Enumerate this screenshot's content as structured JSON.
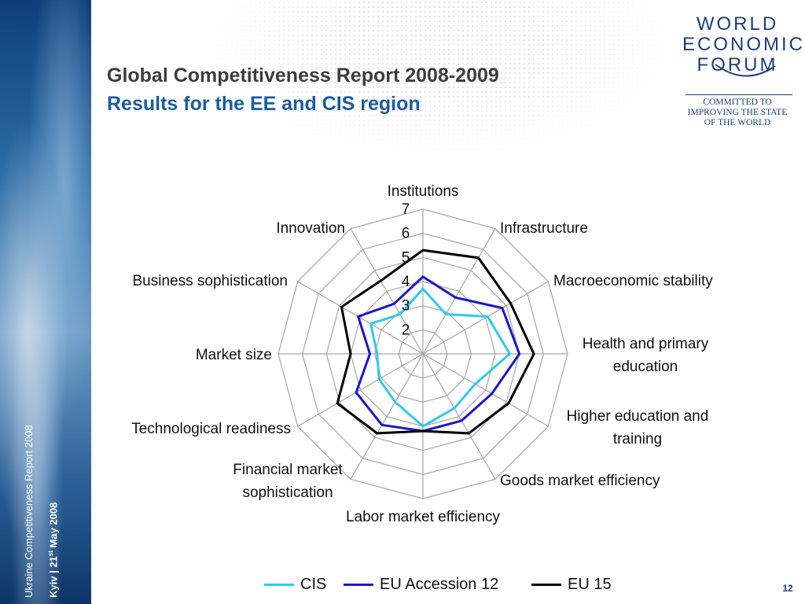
{
  "header": {
    "title": "Global Competitiveness Report 2008-2009",
    "subtitle": "Results for the EE and CIS region"
  },
  "sidebar": {
    "line1": "Ukraine Competitiveness Report 2008",
    "line2_prefix": "Kyiv  |  21",
    "line2_sup": "st",
    "line2_suffix": " May 2008"
  },
  "logo": {
    "lines": [
      "WORLD",
      "ECONOMIC",
      "FORUM"
    ],
    "tagline": [
      "COMMITTED TO",
      "IMPROVING THE STATE",
      "OF THE WORLD"
    ]
  },
  "page_number": "12",
  "colors": {
    "cis": "#33c7f0",
    "eu_accession": "#1a18c9",
    "eu15": "#000000",
    "grid": "#a6a6a6",
    "title": "#3d3d3d",
    "subtitle": "#1a5d9e"
  },
  "chart_data": {
    "type": "radar",
    "categories": [
      "Institutions",
      "Infrastructure",
      "Macroeconomic stability",
      "Health and primary education",
      "Higher education and training",
      "Goods market efficiency",
      "Labor market efficiency",
      "Financial market sophistication",
      "Technological readiness",
      "Market size",
      "Business sophistication",
      "Innovation"
    ],
    "ticks": [
      2,
      3,
      4,
      5,
      6,
      7
    ],
    "range": [
      1,
      7
    ],
    "series": [
      {
        "name": "CIS",
        "values": [
          3.7,
          2.9,
          4.1,
          4.6,
          3.5,
          3.6,
          4.0,
          3.3,
          3.1,
          2.9,
          3.5,
          2.9
        ]
      },
      {
        "name": "EU Accession 12",
        "values": [
          4.2,
          3.7,
          4.8,
          5.0,
          4.3,
          4.2,
          4.2,
          4.4,
          4.2,
          3.2,
          4.1,
          3.4
        ]
      },
      {
        "name": "EU 15",
        "values": [
          5.3,
          5.6,
          5.2,
          5.6,
          5.1,
          4.8,
          4.2,
          4.8,
          5.1,
          4.0,
          4.9,
          4.5
        ]
      }
    ],
    "legend_position": "bottom",
    "grid": true
  }
}
